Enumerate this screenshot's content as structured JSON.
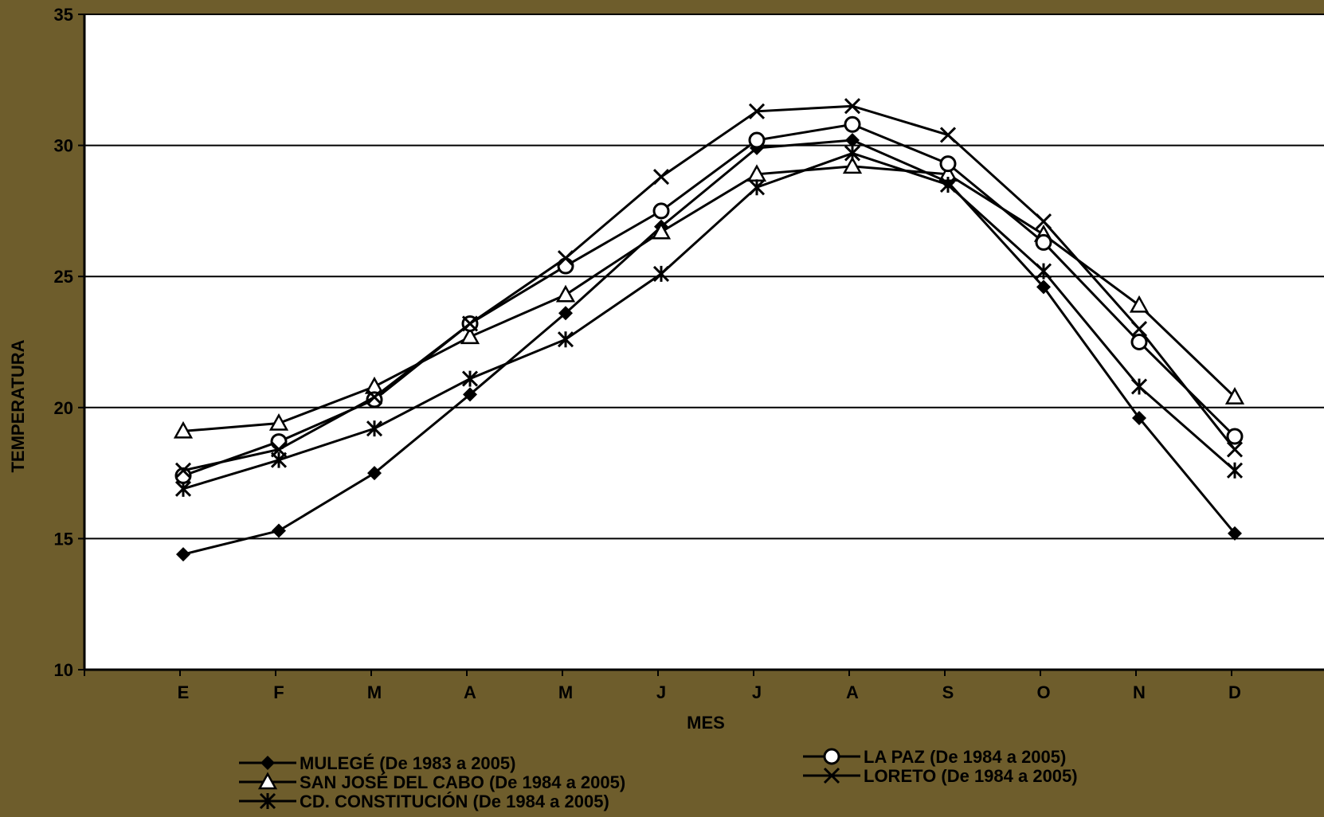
{
  "chart_data": {
    "type": "line",
    "title": "",
    "xlabel": "MES",
    "ylabel": "TEMPERATURA",
    "categories": [
      "E",
      "F",
      "M",
      "A",
      "M",
      "J",
      "J",
      "A",
      "S",
      "O",
      "N",
      "D"
    ],
    "ylim": [
      10,
      35
    ],
    "yticks": [
      10,
      15,
      20,
      25,
      30,
      35
    ],
    "grid": "horizontal",
    "legend_position": "bottom",
    "series": [
      {
        "name": "MULEGÉ (De 1983 a 2005)",
        "marker": "diamond",
        "values": [
          14.4,
          15.3,
          17.5,
          20.5,
          23.6,
          26.9,
          29.9,
          30.2,
          28.6,
          24.6,
          19.6,
          15.2
        ]
      },
      {
        "name": "SAN JOSÉ DEL CABO (De 1984 a 2005)",
        "marker": "triangle",
        "values": [
          19.1,
          19.4,
          20.8,
          22.7,
          24.3,
          26.7,
          28.9,
          29.2,
          28.9,
          26.6,
          23.9,
          20.4
        ]
      },
      {
        "name": "CD. CONSTITUCIÓN (De 1984 a 2005)",
        "marker": "asterisk",
        "values": [
          16.9,
          18.0,
          19.2,
          21.1,
          22.6,
          25.1,
          28.4,
          29.7,
          28.5,
          25.2,
          20.8,
          17.6
        ]
      },
      {
        "name": "LA PAZ (De 1984 a 2005)",
        "marker": "circle",
        "values": [
          17.4,
          18.7,
          20.3,
          23.2,
          25.4,
          27.5,
          30.2,
          30.8,
          29.3,
          26.3,
          22.5,
          18.9
        ]
      },
      {
        "name": "LORETO (De 1984 a 2005)",
        "marker": "x",
        "values": [
          17.6,
          18.4,
          20.4,
          23.2,
          25.7,
          28.8,
          31.3,
          31.5,
          30.4,
          27.1,
          23.0,
          18.4
        ]
      }
    ]
  }
}
